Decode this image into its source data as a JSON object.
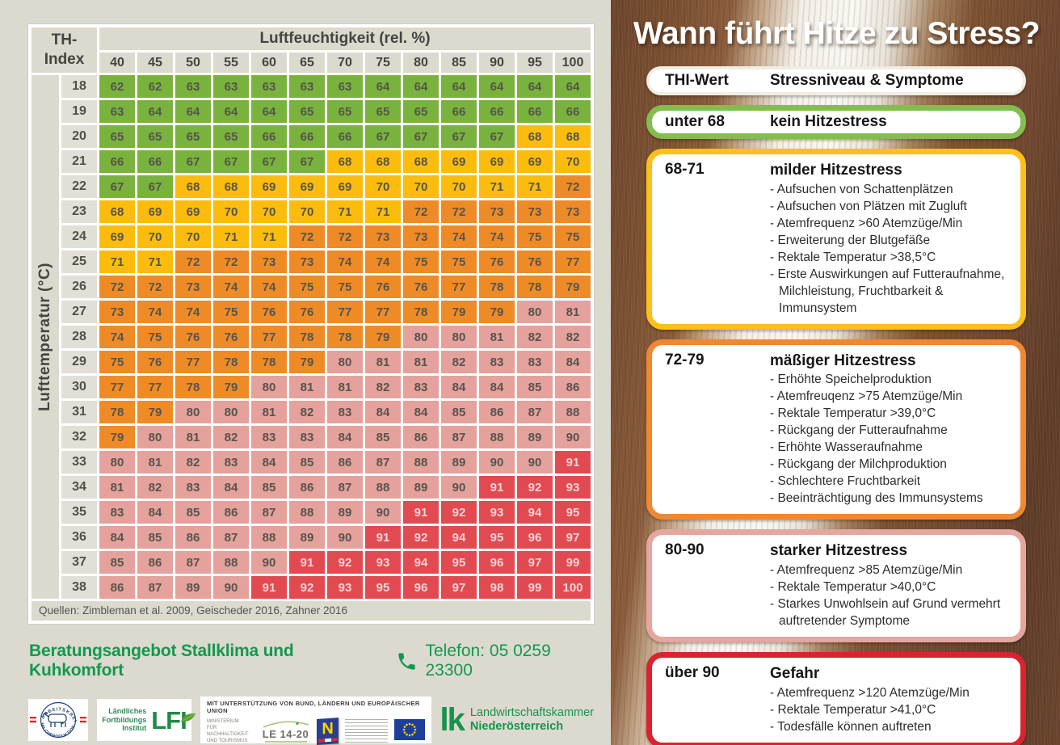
{
  "chart_data": {
    "type": "heatmap",
    "title": "TH-Index",
    "corner_label_line1": "TH-",
    "corner_label_line2": "Index",
    "x_axis_label": "Luftfeuchtigkeit (rel. %)",
    "y_axis_label": "Lufttemperatur (°C)",
    "x": [
      40,
      45,
      50,
      55,
      60,
      65,
      70,
      75,
      80,
      85,
      90,
      95,
      100
    ],
    "y": [
      18,
      19,
      20,
      21,
      22,
      23,
      24,
      25,
      26,
      27,
      28,
      29,
      30,
      31,
      32,
      33,
      34,
      35,
      36,
      37,
      38
    ],
    "values": [
      [
        62,
        62,
        63,
        63,
        63,
        63,
        63,
        64,
        64,
        64,
        64,
        64,
        64
      ],
      [
        63,
        64,
        64,
        64,
        64,
        65,
        65,
        65,
        65,
        66,
        66,
        66,
        66
      ],
      [
        65,
        65,
        65,
        65,
        66,
        66,
        66,
        67,
        67,
        67,
        67,
        68,
        68
      ],
      [
        66,
        66,
        67,
        67,
        67,
        67,
        68,
        68,
        68,
        69,
        69,
        69,
        70
      ],
      [
        67,
        67,
        68,
        68,
        69,
        69,
        69,
        70,
        70,
        70,
        71,
        71,
        72
      ],
      [
        68,
        69,
        69,
        70,
        70,
        70,
        71,
        71,
        72,
        72,
        73,
        73,
        73
      ],
      [
        69,
        70,
        70,
        71,
        71,
        72,
        72,
        73,
        73,
        74,
        74,
        75,
        75
      ],
      [
        71,
        71,
        72,
        72,
        73,
        73,
        74,
        74,
        75,
        75,
        76,
        76,
        77
      ],
      [
        72,
        72,
        73,
        74,
        74,
        75,
        75,
        76,
        76,
        77,
        78,
        78,
        79
      ],
      [
        73,
        74,
        74,
        75,
        76,
        76,
        77,
        77,
        78,
        79,
        79,
        80,
        81
      ],
      [
        74,
        75,
        76,
        76,
        77,
        78,
        78,
        79,
        80,
        80,
        81,
        82,
        82
      ],
      [
        75,
        76,
        77,
        78,
        78,
        79,
        80,
        81,
        81,
        82,
        83,
        83,
        84
      ],
      [
        77,
        77,
        78,
        79,
        80,
        81,
        81,
        82,
        83,
        84,
        84,
        85,
        86
      ],
      [
        78,
        79,
        80,
        80,
        81,
        82,
        83,
        84,
        84,
        85,
        86,
        87,
        88
      ],
      [
        79,
        80,
        81,
        82,
        83,
        83,
        84,
        85,
        86,
        87,
        88,
        89,
        90
      ],
      [
        80,
        81,
        82,
        83,
        84,
        85,
        86,
        87,
        88,
        89,
        90,
        90,
        91
      ],
      [
        81,
        82,
        83,
        84,
        85,
        86,
        87,
        88,
        89,
        90,
        91,
        92,
        93
      ],
      [
        83,
        84,
        85,
        86,
        87,
        88,
        89,
        90,
        91,
        92,
        93,
        94,
        95
      ],
      [
        84,
        85,
        86,
        87,
        88,
        89,
        90,
        91,
        92,
        94,
        95,
        96,
        97
      ],
      [
        85,
        86,
        87,
        88,
        90,
        91,
        92,
        93,
        94,
        95,
        96,
        97,
        99
      ],
      [
        86,
        87,
        89,
        90,
        91,
        92,
        93,
        95,
        96,
        97,
        98,
        99,
        100
      ]
    ],
    "color_rules": [
      {
        "max": 67,
        "key": "green"
      },
      {
        "max": 71,
        "key": "yellow"
      },
      {
        "max": 79,
        "key": "orange"
      },
      {
        "max": 90,
        "key": "pink"
      },
      {
        "max": 1000,
        "key": "red"
      }
    ],
    "palette": {
      "green": "#79b23c",
      "yellow": "#fbbc0d",
      "orange": "#ef8b26",
      "pink": "#e5a19b",
      "red": "#e24a52"
    },
    "cell_text_color": "#56544e",
    "red_cell_text_color": "#f6d4d4",
    "legend_position": "right",
    "grid": true
  },
  "left": {
    "sources": "Quellen: Zimbleman et al. 2009, Geischeder 2016, Zahner 2016",
    "contact_title": "Beratungsangebot Stallklima und Kuhkomfort",
    "contact_phone": "Telefon: 05 0259 23300",
    "logos": {
      "arbeitskreis_top": "ARBEITSKREIS",
      "arbeitskreis_bottom": "MILCHPRODUKTION",
      "lfi_line1": "Ländliches",
      "lfi_line2": "Fortbildungs",
      "lfi_line3": "Institut",
      "lfi_acronym": "LFI",
      "support_banner": "MIT UNTERSTÜTZUNG VON BUND, LÄNDERN UND EUROPÄISCHER UNION",
      "ministerium_line1": "MINISTERIUM",
      "ministerium_line2": "FÜR NACHHALTIGKEIT",
      "ministerium_line3": "UND TOURISMUS",
      "le_label": "LE 14-20",
      "noe_letter": "N",
      "lk_acronym": "lk",
      "lk_line1": "Landwirtschaftskammer",
      "lk_line2": "Niederösterreich"
    },
    "brand_green": "#12994f"
  },
  "right": {
    "title": "Wann führt Hitze zu Stress?",
    "header": {
      "col1": "THI-Wert",
      "col2": "Stressniveau & Symptome"
    },
    "levels": [
      {
        "range": "unter 68",
        "name": "kein Hitzestress",
        "border_color": "#83bd4f",
        "symptoms": []
      },
      {
        "range": "68-71",
        "name": "milder Hitzestress",
        "border_color": "#fcc01c",
        "symptoms": [
          "Aufsuchen von Schattenplätzen",
          "Aufsuchen von Plätzen mit Zugluft",
          "Atemfrequenz >60 Atemzüge/Min",
          "Erweiterung der Blutgefäße",
          "Rektale Temperatur >38,5°C",
          "Erste Auswirkungen auf Futteraufnahme, Milchleistung, Fruchtbarkeit & Immunsystem"
        ]
      },
      {
        "range": "72-79",
        "name": "mäßiger Hitzestress",
        "border_color": "#ee8833",
        "symptoms": [
          "Erhöhte Speichelproduktion",
          "Atemfreuqenz >75 Atemzüge/Min",
          "Rektale Temperatur >39,0°C",
          "Rückgang der Futteraufnahme",
          "Erhöhte Wasseraufnahme",
          "Rückgang der Milchproduktion",
          "Schlechtere Fruchtbarkeit",
          "Beeinträchtigung des Immunsystems"
        ]
      },
      {
        "range": "80-90",
        "name": "starker Hitzestress",
        "border_color": "#e5a69f",
        "symptoms": [
          "Atemfrequenz >85 Atemzüge/Min",
          "Rektale Temperatur >40,0°C",
          "Starkes Unwohlsein auf Grund vermehrt auftretender Symptome"
        ]
      },
      {
        "range": "über 90",
        "name": "Gefahr",
        "border_color": "#d92330",
        "symptoms": [
          "Atemfrequenz >120 Atemzüge/Min",
          "Rektale Temperatur >41,0°C",
          "Todesfälle können auftreten"
        ]
      }
    ]
  }
}
